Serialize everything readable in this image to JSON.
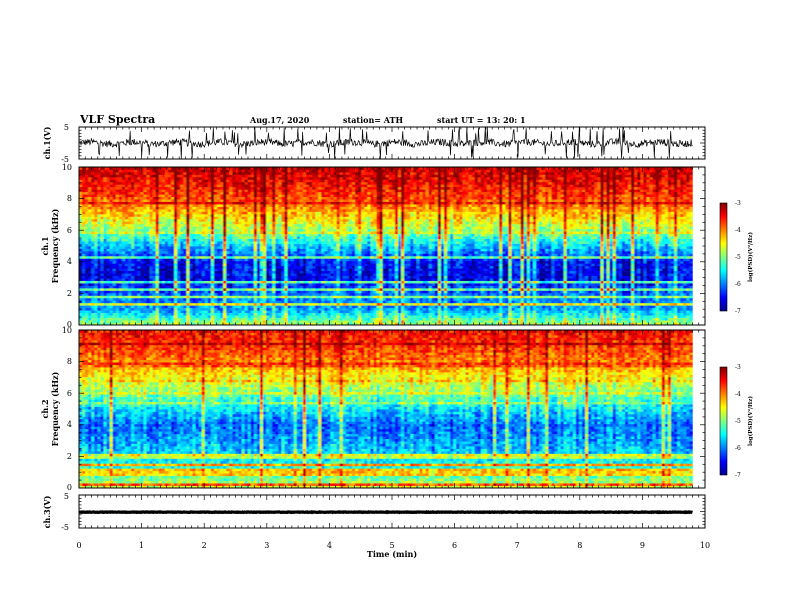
{
  "header": {
    "title": "VLF Spectra",
    "date": "Aug.17, 2020",
    "station": "station= ATH",
    "start": "start  UT =   13: 20: 1"
  },
  "panels": {
    "ch1_wave": {
      "ylabel": "ch.1(V)",
      "ticks": [
        "5",
        "-5"
      ]
    },
    "ch1_spec": {
      "ylabel_line1": "ch.1",
      "ylabel_line2": "Frequency (kHz)",
      "ticks": [
        "10",
        "8",
        "6",
        "4",
        "2",
        "0"
      ]
    },
    "ch2_spec": {
      "ylabel_line1": "ch.2",
      "ylabel_line2": "Frequency (kHz)",
      "ticks": [
        "10",
        "8",
        "6",
        "4",
        "2",
        "0"
      ]
    },
    "ch3_wave": {
      "ylabel": "ch.3(V)",
      "ticks": [
        "5",
        "-5"
      ]
    }
  },
  "xaxis": {
    "label": "Time (min)",
    "ticks": [
      "0",
      "1",
      "2",
      "3",
      "4",
      "5",
      "6",
      "7",
      "8",
      "9",
      "10"
    ]
  },
  "colorbar": {
    "label": "log(PSD)(V²/Hz)",
    "ticks": [
      "-3",
      "-4",
      "-5",
      "-6",
      "-7"
    ]
  },
  "chart_data": [
    {
      "type": "line",
      "name": "ch.1 waveform",
      "ylabel": "ch.1(V)",
      "ylim": [
        -5,
        5
      ],
      "xlim": [
        0,
        10
      ],
      "x_unit": "min",
      "data_extent_min": 9.8,
      "description_level": "noisy broadband signal between about -2 V and +2 V with frequent spikes"
    },
    {
      "type": "heatmap",
      "name": "ch.1 spectrogram",
      "xlabel": "Time (min)",
      "ylabel": "Frequency (kHz)",
      "xlim": [
        0,
        10
      ],
      "ylim": [
        0,
        10
      ],
      "clim": [
        -7,
        -3
      ],
      "colormap": "jet",
      "band_profile": {
        "freq_kHz": [
          0,
          1,
          2,
          3,
          4,
          5,
          6,
          7,
          8,
          9,
          10
        ],
        "mean_logPSD": [
          -4.8,
          -5.9,
          -6.1,
          -6.6,
          -6.5,
          -5.7,
          -4.9,
          -4.3,
          -3.8,
          -3.5,
          -3.3
        ]
      }
    },
    {
      "type": "heatmap",
      "name": "ch.2 spectrogram",
      "xlabel": "Time (min)",
      "ylabel": "Frequency (kHz)",
      "xlim": [
        0,
        10
      ],
      "ylim": [
        0,
        10
      ],
      "clim": [
        -7,
        -3
      ],
      "colormap": "jet",
      "band_profile": {
        "freq_kHz": [
          0,
          1,
          2,
          3,
          4,
          5,
          6,
          7,
          8,
          9,
          10
        ],
        "mean_logPSD": [
          -4.6,
          -5.3,
          -5.6,
          -5.9,
          -6.1,
          -5.6,
          -5.0,
          -4.5,
          -4.0,
          -3.7,
          -3.5
        ]
      }
    },
    {
      "type": "line",
      "name": "ch.3 waveform",
      "ylabel": "ch.3(V)",
      "ylim": [
        -5,
        5
      ],
      "xlim": [
        0,
        10
      ],
      "x_unit": "min",
      "data_extent_min": 9.8,
      "level_V": -0.2
    }
  ]
}
